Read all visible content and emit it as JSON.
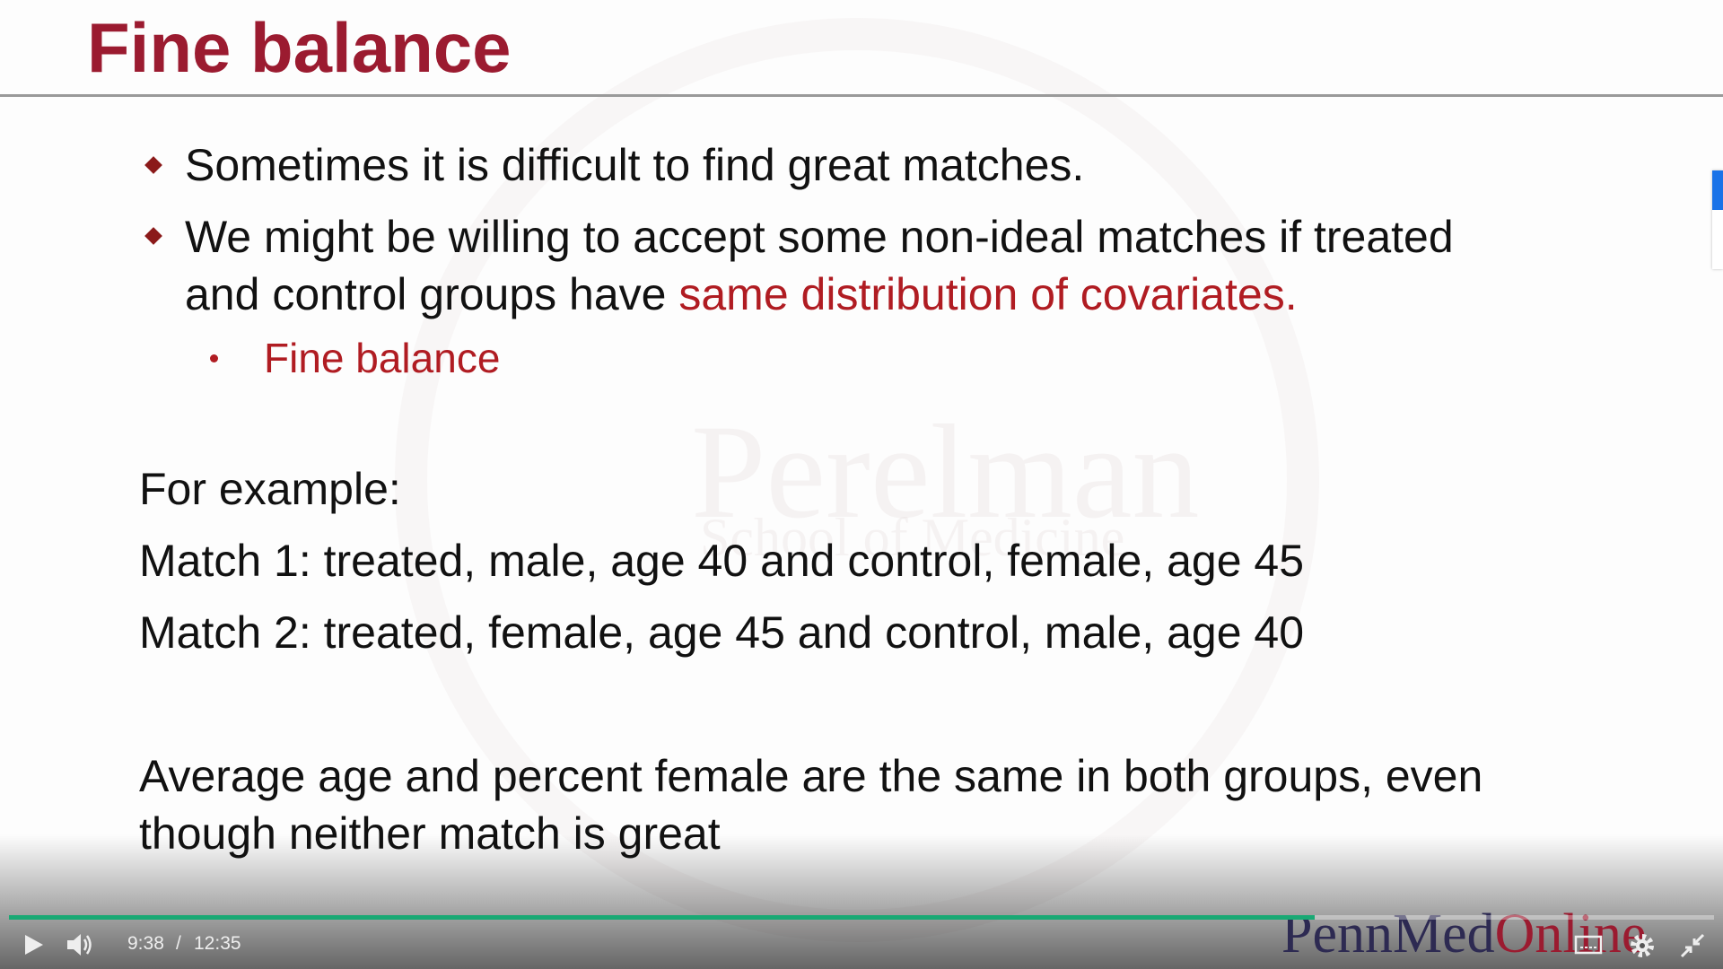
{
  "slide": {
    "title": "Fine balance",
    "bullets": [
      [
        "Sometimes it is difficult to find great matches."
      ],
      [
        "We might be willing to accept some non-ideal matches if treated",
        "and control groups have ",
        "same distribution of covariates."
      ]
    ],
    "sub_bullet": "Fine balance",
    "example_heading": "For example:",
    "examples": [
      "Match 1: treated, male, age 40 and control, female, age 45",
      "Match 2: treated, female, age 45 and control, male, age 40"
    ],
    "conclusion": [
      "Average age and percent female are the same in both groups, even",
      "though neither match is great"
    ]
  },
  "watermark": {
    "name": "Perelman",
    "school": "School of Medicine"
  },
  "player": {
    "current_time": "9:38",
    "separator": "/",
    "duration": "12:35",
    "logo": [
      "PennMed",
      "Online"
    ]
  }
}
